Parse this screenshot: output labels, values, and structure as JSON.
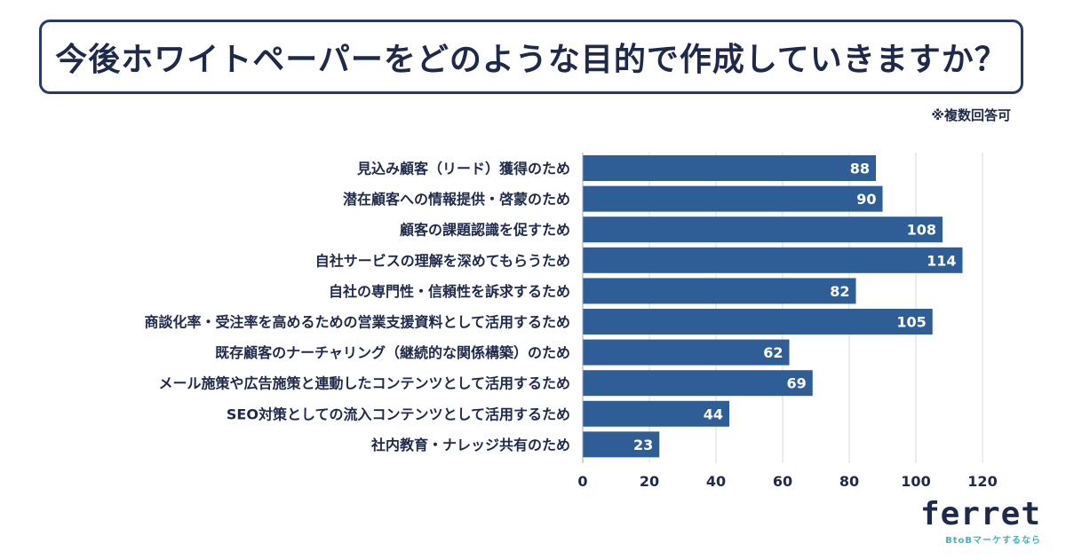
{
  "title": "今後ホワイトペーパーをどのような目的で作成していきますか？",
  "note": "※複数回答可",
  "logo": {
    "name": "ferret",
    "tagline": "BtoBマーケするなら"
  },
  "colors": {
    "bar": "#2f5e97",
    "grid": "#d9d9d9",
    "text": "#1f2a4a",
    "value_text": "#ffffff"
  },
  "chart_data": {
    "type": "bar",
    "orientation": "horizontal",
    "categories": [
      "見込み顧客（リード）獲得のため",
      "潜在顧客への情報提供・啓蒙のため",
      "顧客の課題認識を促すため",
      "自社サービスの理解を深めてもらうため",
      "自社の専門性・信頼性を訴求するため",
      "商談化率・受注率を高めるための営業支援資料として活用するため",
      "既存顧客のナーチャリング（継続的な関係構築）のため",
      "メール施策や広告施策と連動したコンテンツとして活用するため",
      "SEO対策としての流入コンテンツとして活用するため",
      "社内教育・ナレッジ共有のため"
    ],
    "values": [
      88,
      90,
      108,
      114,
      82,
      105,
      62,
      69,
      44,
      23
    ],
    "xlim": [
      0,
      120
    ],
    "ticks": [
      0,
      20,
      40,
      60,
      80,
      100,
      120
    ],
    "grid": true
  }
}
